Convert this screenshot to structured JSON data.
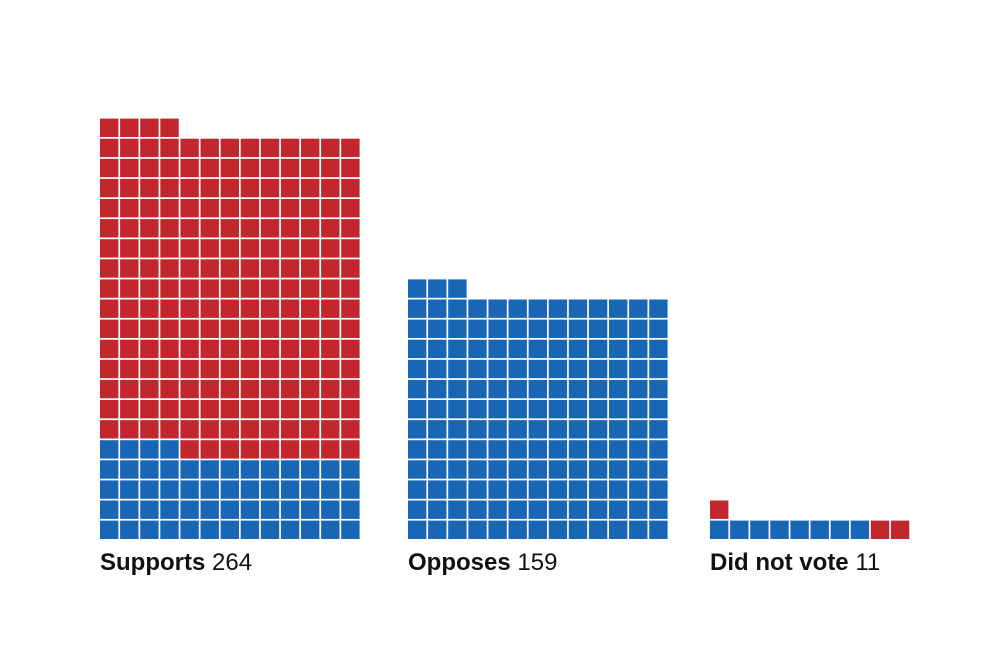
{
  "chart_data": {
    "type": "waffle",
    "unit": "1 square = 1 member",
    "colors": {
      "red": "#c1272d",
      "blue": "#1866b4"
    },
    "groups": [
      {
        "name": "Supports",
        "count_label": "264",
        "total": 264,
        "composition": [
          {
            "color": "red",
            "count": 208
          },
          {
            "color": "blue",
            "count": 56
          }
        ]
      },
      {
        "name": "Opposes",
        "count_label": "159",
        "total": 159,
        "composition": [
          {
            "color": "blue",
            "count": 159
          }
        ]
      },
      {
        "name": "Did not vote",
        "count_label": "11",
        "total": 11,
        "composition": [
          {
            "color": "red",
            "count": 3
          },
          {
            "color": "blue",
            "count": 8
          }
        ]
      }
    ]
  }
}
